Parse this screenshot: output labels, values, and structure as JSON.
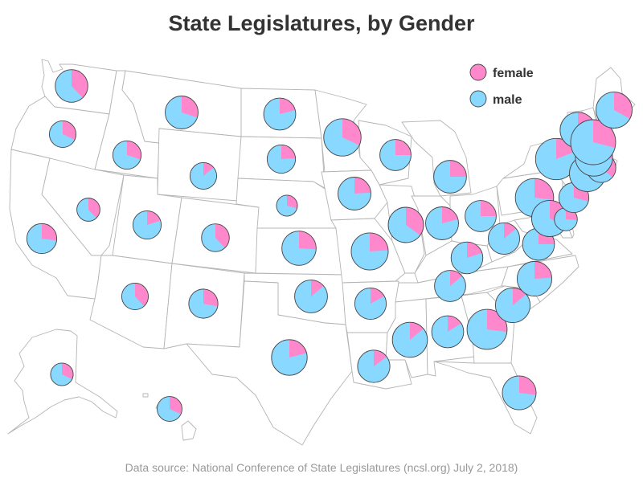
{
  "title": "State Legislatures, by Gender",
  "source": "Data source: National Conference of State Legislatures (ncsl.org) July 2, 2018)",
  "colors": {
    "female": "#ff88cc",
    "male": "#88d8ff",
    "outline": "#444444",
    "border": "#b4b4b4"
  },
  "legend": [
    {
      "key": "female",
      "label": "female"
    },
    {
      "key": "male",
      "label": "male"
    }
  ],
  "states": [
    {
      "state": "WA",
      "total": 147,
      "female_pct": 0.38
    },
    {
      "state": "OR",
      "total": 90,
      "female_pct": 0.32
    },
    {
      "state": "CA",
      "total": 120,
      "female_pct": 0.27
    },
    {
      "state": "ID",
      "total": 105,
      "female_pct": 0.3
    },
    {
      "state": "NV",
      "total": 63,
      "female_pct": 0.38
    },
    {
      "state": "MT",
      "total": 150,
      "female_pct": 0.3
    },
    {
      "state": "WY",
      "total": 90,
      "female_pct": 0.14
    },
    {
      "state": "UT",
      "total": 104,
      "female_pct": 0.2
    },
    {
      "state": "AZ",
      "total": 90,
      "female_pct": 0.38
    },
    {
      "state": "CO",
      "total": 100,
      "female_pct": 0.38
    },
    {
      "state": "NM",
      "total": 112,
      "female_pct": 0.28
    },
    {
      "state": "ND",
      "total": 141,
      "female_pct": 0.21
    },
    {
      "state": "SD",
      "total": 105,
      "female_pct": 0.24
    },
    {
      "state": "NE",
      "total": 49,
      "female_pct": 0.29
    },
    {
      "state": "KS",
      "total": 165,
      "female_pct": 0.26
    },
    {
      "state": "OK",
      "total": 149,
      "female_pct": 0.14
    },
    {
      "state": "TX",
      "total": 181,
      "female_pct": 0.21
    },
    {
      "state": "MN",
      "total": 201,
      "female_pct": 0.32
    },
    {
      "state": "IA",
      "total": 150,
      "female_pct": 0.24
    },
    {
      "state": "MO",
      "total": 197,
      "female_pct": 0.24
    },
    {
      "state": "AR",
      "total": 135,
      "female_pct": 0.17
    },
    {
      "state": "LA",
      "total": 144,
      "female_pct": 0.15
    },
    {
      "state": "WI",
      "total": 132,
      "female_pct": 0.25
    },
    {
      "state": "IL",
      "total": 177,
      "female_pct": 0.35
    },
    {
      "state": "MI",
      "total": 148,
      "female_pct": 0.25
    },
    {
      "state": "IN",
      "total": 150,
      "female_pct": 0.21
    },
    {
      "state": "OH",
      "total": 132,
      "female_pct": 0.25
    },
    {
      "state": "KY",
      "total": 138,
      "female_pct": 0.2
    },
    {
      "state": "TN",
      "total": 132,
      "female_pct": 0.14
    },
    {
      "state": "MS",
      "total": 174,
      "female_pct": 0.14
    },
    {
      "state": "AL",
      "total": 140,
      "female_pct": 0.16
    },
    {
      "state": "GA",
      "total": 236,
      "female_pct": 0.27
    },
    {
      "state": "FL",
      "total": 160,
      "female_pct": 0.27
    },
    {
      "state": "SC",
      "total": 170,
      "female_pct": 0.14
    },
    {
      "state": "NC",
      "total": 170,
      "female_pct": 0.24
    },
    {
      "state": "VA",
      "total": 140,
      "female_pct": 0.25
    },
    {
      "state": "WV",
      "total": 134,
      "female_pct": 0.14
    },
    {
      "state": "PA",
      "total": 253,
      "female_pct": 0.19
    },
    {
      "state": "NY",
      "total": 213,
      "female_pct": 0.27
    },
    {
      "state": "MD",
      "total": 188,
      "female_pct": 0.32
    },
    {
      "state": "DE",
      "total": 62,
      "female_pct": 0.26
    },
    {
      "state": "NJ",
      "total": 120,
      "female_pct": 0.29
    },
    {
      "state": "CT",
      "total": 187,
      "female_pct": 0.28
    },
    {
      "state": "RI",
      "total": 113,
      "female_pct": 0.36
    },
    {
      "state": "MA",
      "total": 200,
      "female_pct": 0.26
    },
    {
      "state": "VT",
      "total": 180,
      "female_pct": 0.4
    },
    {
      "state": "NH",
      "total": 424,
      "female_pct": 0.29
    },
    {
      "state": "ME",
      "total": 186,
      "female_pct": 0.33
    },
    {
      "state": "AK",
      "total": 60,
      "female_pct": 0.32
    },
    {
      "state": "HI",
      "total": 76,
      "female_pct": 0.32
    }
  ]
}
